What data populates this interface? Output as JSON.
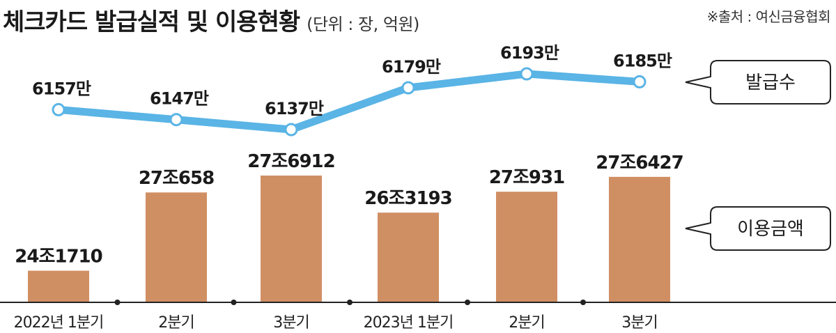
{
  "header": {
    "title": "체크카드 발급실적 및 이용현황",
    "unit": "(단위 : 장, 억원)",
    "source": "※출처 : 여신금융협회"
  },
  "colors": {
    "line": "#5ab4e5",
    "bar": "#d08f63",
    "axis": "#222222",
    "marker_fill": "#ffffff"
  },
  "chart_data": {
    "type": "bar+line",
    "categories": [
      "2022년 1분기",
      "2분기",
      "3분기",
      "2023년 1분기",
      "2분기",
      "3분기"
    ],
    "grid": false,
    "series": [
      {
        "name": "발급수",
        "type": "line",
        "values": [
          6157,
          6147,
          6137,
          6179,
          6193,
          6185
        ],
        "labels": [
          "6157만",
          "6147만",
          "6137만",
          "6179만",
          "6193만",
          "6185만"
        ]
      },
      {
        "name": "이용금액",
        "type": "bar",
        "values": [
          241710,
          270658,
          276912,
          263193,
          270931,
          276427
        ],
        "labels": [
          "24조1710",
          "27조658",
          "27조6912",
          "26조3193",
          "27조931",
          "27조6427"
        ]
      }
    ]
  }
}
